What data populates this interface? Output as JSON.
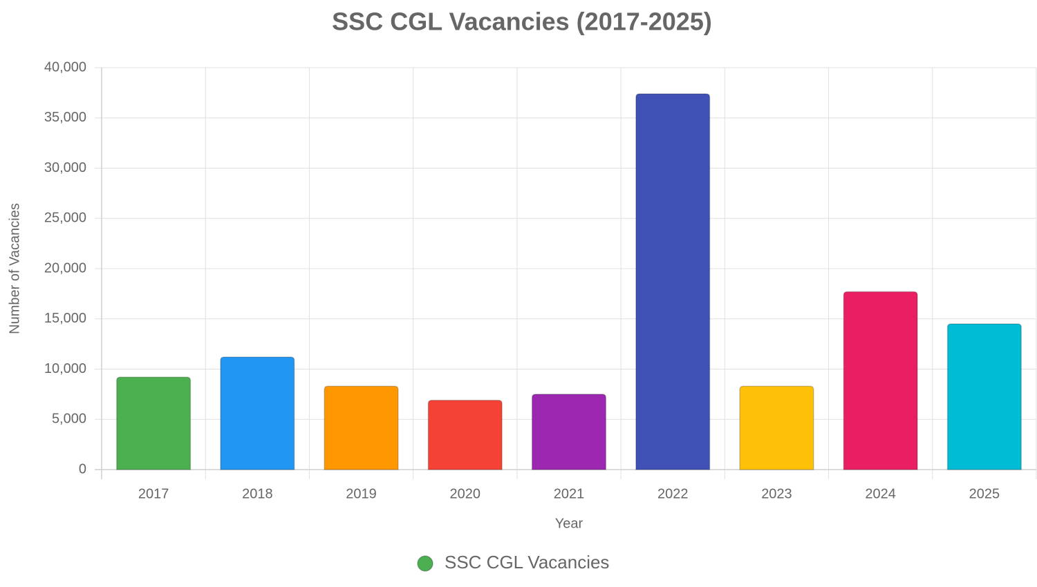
{
  "chart_data": {
    "type": "bar",
    "title": "SSC CGL Vacancies (2017-2025)",
    "x_label": "Year",
    "y_label": "Number of Vacancies",
    "categories": [
      "2017",
      "2018",
      "2019",
      "2020",
      "2021",
      "2022",
      "2023",
      "2024",
      "2025"
    ],
    "series": [
      {
        "name": "SSC CGL Vacancies",
        "colors": [
          "#4caf50",
          "#2196f3",
          "#ff9800",
          "#f44336",
          "#9c27b0",
          "#3f51b5",
          "#ffc107",
          "#e91e63",
          "#00bcd4"
        ],
        "values": [
          9200,
          11200,
          8300,
          6900,
          7500,
          37400,
          8300,
          17700,
          14500
        ]
      }
    ],
    "ylim": [
      0,
      40000
    ],
    "yticks": [
      0,
      {
        "value": 5000,
        "label": "5,000"
      },
      {
        "value": 10000,
        "label": "10,000"
      },
      {
        "value": 15000,
        "label": "15,000"
      },
      {
        "value": 20000,
        "label": "20,000"
      },
      {
        "value": 25000,
        "label": "25,000"
      },
      {
        "value": 30000,
        "label": "30,000"
      },
      {
        "value": 35000,
        "label": "35,000"
      },
      {
        "value": 40000,
        "label": "40,000"
      }
    ],
    "grid": true,
    "legend": "bottom"
  }
}
